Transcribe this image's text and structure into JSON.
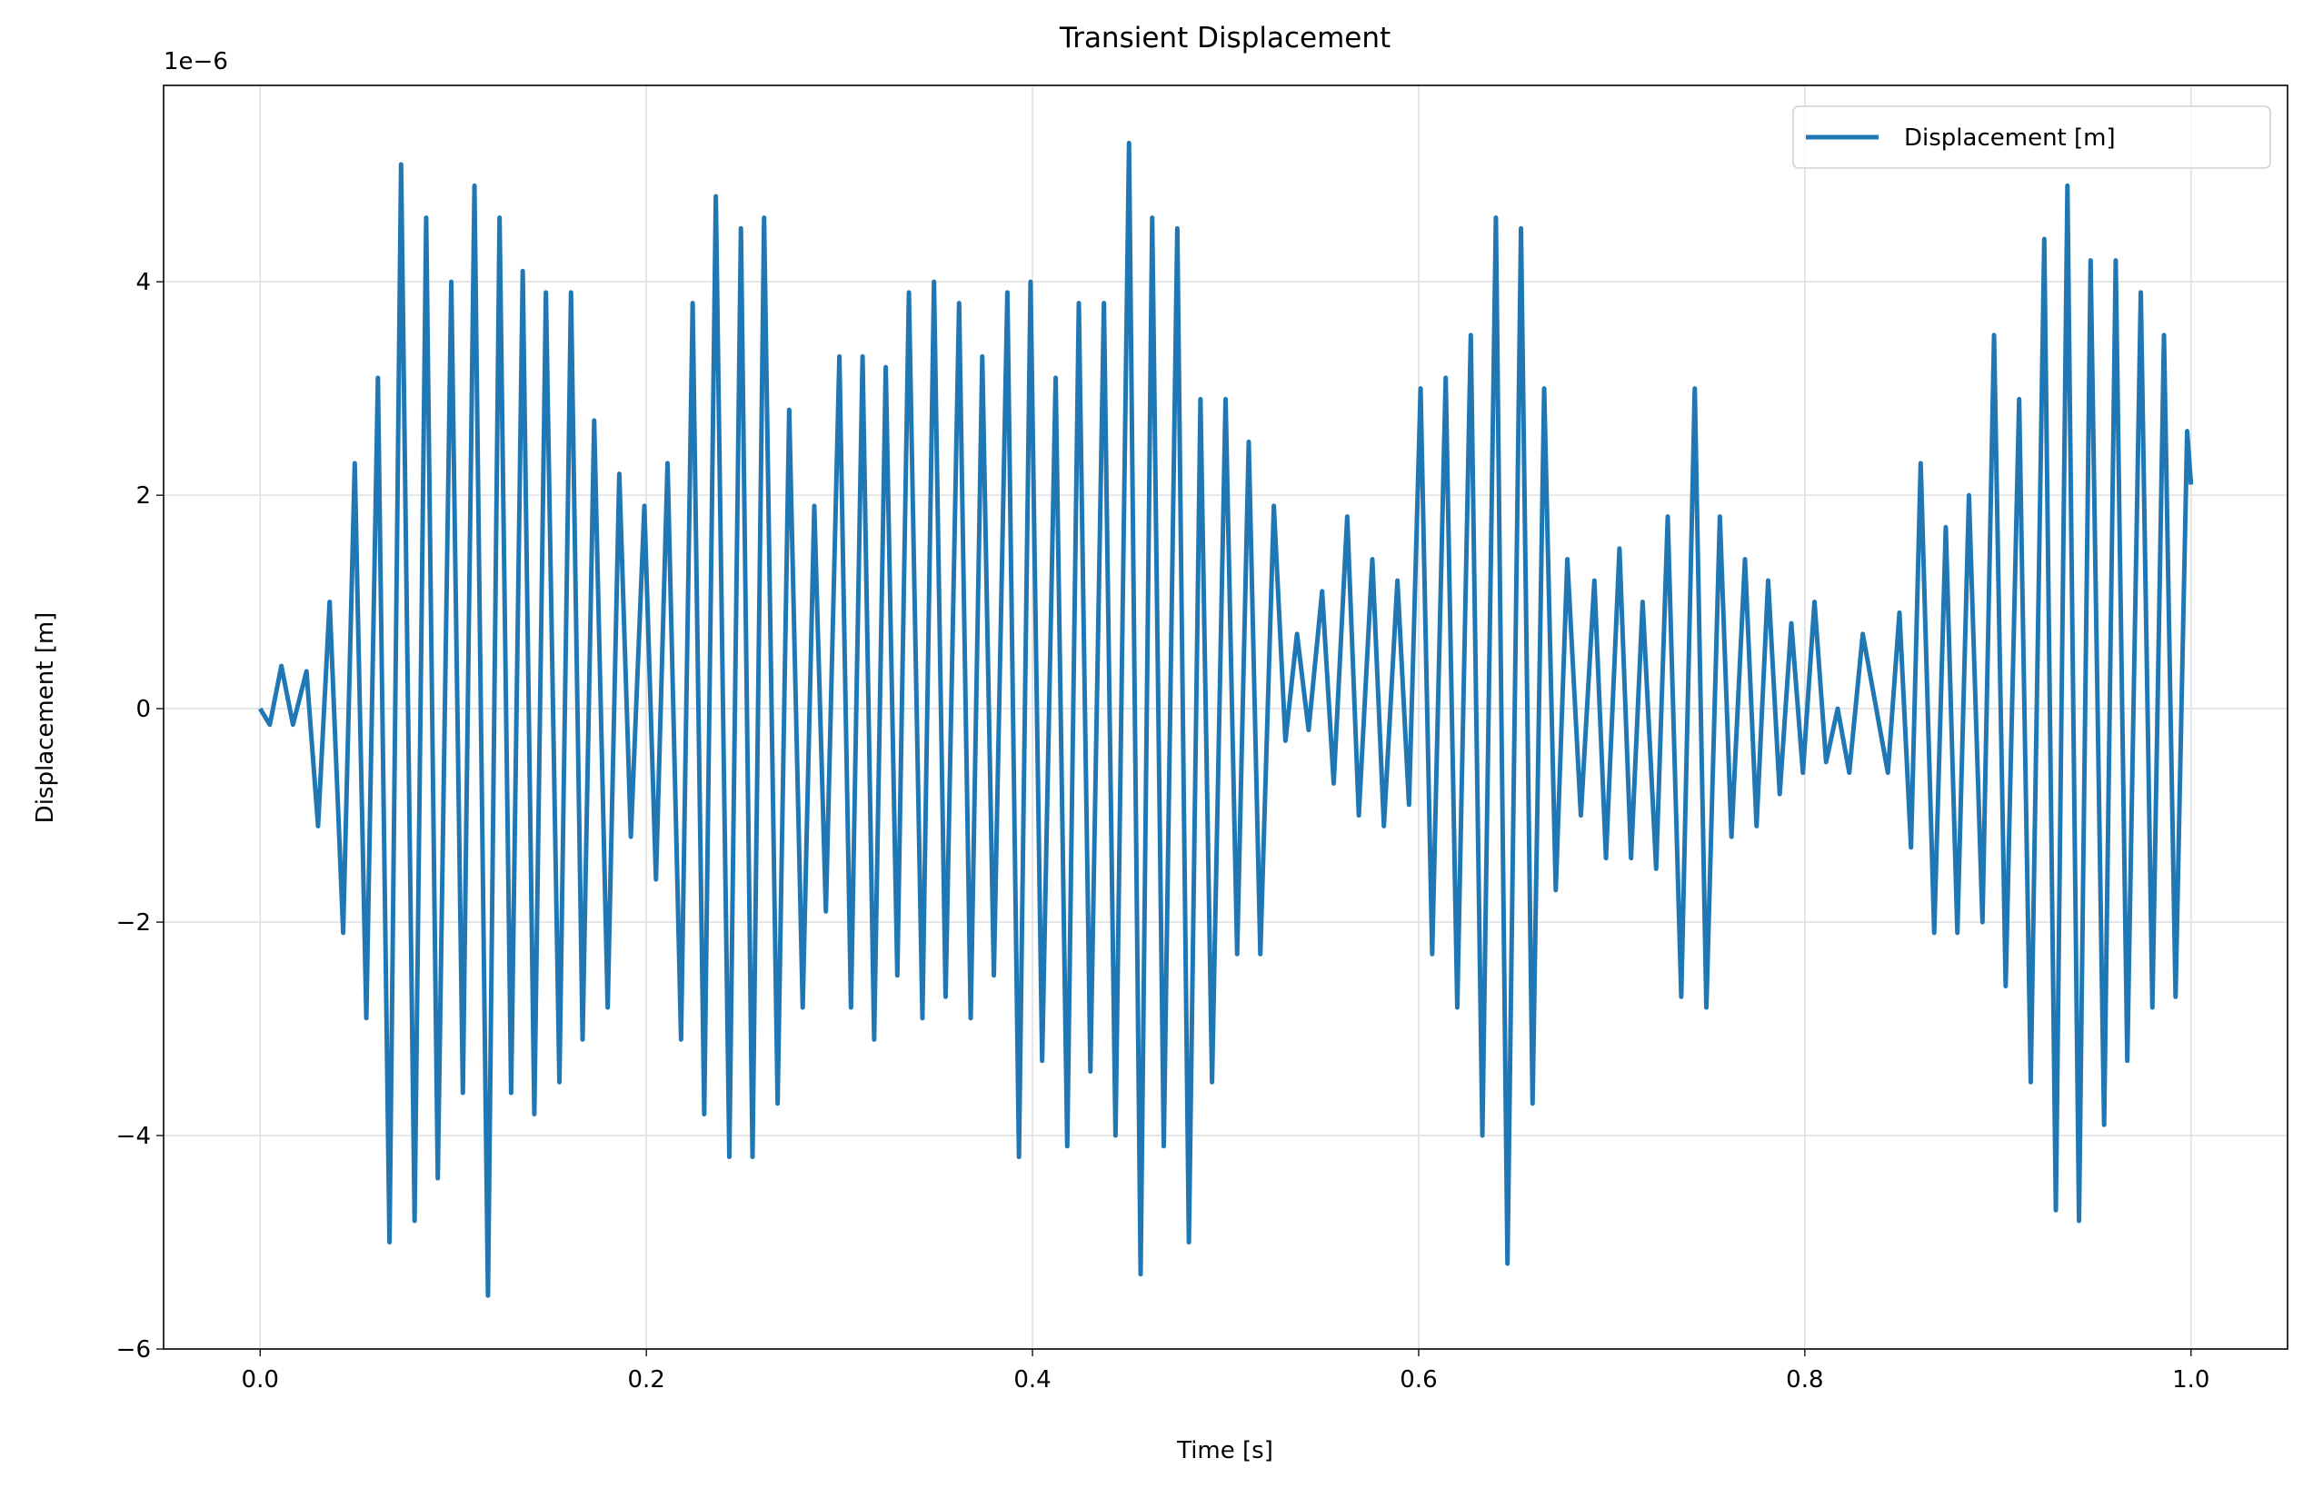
{
  "chart_data": {
    "type": "line",
    "title": "Transient Displacement",
    "xlabel": "Time [s]",
    "ylabel": "Displacement [m]",
    "y_offset_label": "1e−6",
    "x": [
      0,
      0.005,
      0.011,
      0.017,
      0.024,
      0.03,
      0.036,
      0.043,
      0.049,
      0.055,
      0.061,
      0.067,
      0.073,
      0.08,
      0.086,
      0.092,
      0.099,
      0.105,
      0.111,
      0.118,
      0.124,
      0.13,
      0.136,
      0.142,
      0.148,
      0.155,
      0.161,
      0.167,
      0.173,
      0.18,
      0.186,
      0.192,
      0.199,
      0.205,
      0.211,
      0.218,
      0.224,
      0.23,
      0.236,
      0.243,
      0.249,
      0.255,
      0.261,
      0.268,
      0.274,
      0.281,
      0.287,
      0.293,
      0.3,
      0.306,
      0.312,
      0.318,
      0.324,
      0.33,
      0.336,
      0.343,
      0.349,
      0.355,
      0.362,
      0.368,
      0.374,
      0.38,
      0.387,
      0.393,
      0.399,
      0.405,
      0.412,
      0.418,
      0.424,
      0.43,
      0.437,
      0.443,
      0.45,
      0.456,
      0.462,
      0.468,
      0.475,
      0.481,
      0.487,
      0.493,
      0.5,
      0.506,
      0.512,
      0.518,
      0.525,
      0.531,
      0.537,
      0.543,
      0.55,
      0.556,
      0.563,
      0.569,
      0.576,
      0.582,
      0.589,
      0.595,
      0.601,
      0.607,
      0.614,
      0.62,
      0.627,
      0.633,
      0.64,
      0.646,
      0.653,
      0.659,
      0.665,
      0.671,
      0.677,
      0.684,
      0.691,
      0.697,
      0.704,
      0.71,
      0.716,
      0.723,
      0.729,
      0.736,
      0.743,
      0.749,
      0.756,
      0.762,
      0.769,
      0.775,
      0.781,
      0.787,
      0.793,
      0.799,
      0.805,
      0.811,
      0.817,
      0.823,
      0.83,
      0.843,
      0.849,
      0.855,
      0.86,
      0.867,
      0.873,
      0.879,
      0.885,
      0.892,
      0.898,
      0.904,
      0.911,
      0.917,
      0.924,
      0.93,
      0.936,
      0.942,
      0.948,
      0.955,
      0.961,
      0.967,
      0.974,
      0.98,
      0.986,
      0.992,
      0.998,
      1.0
    ],
    "series": [
      {
        "name": "Displacement [m]",
        "color": "#1f77b4",
        "values": [
          0,
          -0.15,
          0.4,
          -0.15,
          0.35,
          -1.1,
          1.0,
          -2.1,
          2.3,
          -2.9,
          3.1,
          -5.0,
          5.1,
          -4.8,
          4.6,
          -4.4,
          4.0,
          -3.6,
          4.9,
          -5.5,
          4.6,
          -3.6,
          4.1,
          -3.8,
          3.9,
          -3.5,
          3.9,
          -3.1,
          2.7,
          -2.8,
          2.2,
          -1.2,
          1.9,
          -1.6,
          2.3,
          -3.1,
          3.8,
          -3.8,
          4.8,
          -4.2,
          4.5,
          -4.2,
          4.6,
          -3.7,
          2.8,
          -2.8,
          1.9,
          -1.9,
          3.3,
          -2.8,
          3.3,
          -3.1,
          3.2,
          -2.5,
          3.9,
          -2.9,
          4.0,
          -2.7,
          3.8,
          -2.9,
          3.3,
          -2.5,
          3.9,
          -4.2,
          4.0,
          -3.3,
          3.1,
          -4.1,
          3.8,
          -3.4,
          3.8,
          -4.0,
          5.3,
          -5.3,
          4.6,
          -4.1,
          4.5,
          -5.0,
          2.9,
          -3.5,
          2.9,
          -2.3,
          2.5,
          -2.3,
          1.9,
          -0.3,
          0.7,
          -0.2,
          1.1,
          -0.7,
          1.8,
          -1.0,
          1.4,
          -1.1,
          1.2,
          -0.9,
          3.0,
          -2.3,
          3.1,
          -2.8,
          3.5,
          -4.0,
          4.6,
          -5.2,
          4.5,
          -3.7,
          3.0,
          -1.7,
          1.4,
          -1.0,
          1.2,
          -1.4,
          1.5,
          -1.4,
          1.0,
          -1.5,
          1.8,
          -2.7,
          3.0,
          -2.8,
          1.8,
          -1.2,
          1.4,
          -1.1,
          1.2,
          -0.8,
          0.8,
          -0.6,
          1.0,
          -0.5,
          0.0,
          -0.6,
          0.7,
          -0.6,
          0.9,
          -1.3,
          2.3,
          -2.1,
          1.7,
          -2.1,
          2.0,
          -2.0,
          3.5,
          -2.6,
          2.9,
          -3.5,
          4.4,
          -4.7,
          4.9,
          -4.8,
          4.2,
          -3.9,
          4.2,
          -3.3,
          3.9,
          -2.8,
          3.5,
          -2.7,
          2.6,
          2.1
        ]
      }
    ],
    "xlim": [
      -0.05,
      1.05
    ],
    "ylim": [
      -6,
      5.84
    ],
    "xticks": [
      {
        "value": 0,
        "label": "0.0"
      },
      0.2,
      0.4,
      0.6,
      0.8,
      {
        "value": 1,
        "label": "1.0"
      }
    ],
    "yticks": [
      {
        "value": -6,
        "label": "−6"
      },
      {
        "value": -4,
        "label": "−4"
      },
      {
        "value": -2,
        "label": "−2"
      },
      0,
      2,
      4
    ],
    "grid": true,
    "legend": "upper right"
  }
}
